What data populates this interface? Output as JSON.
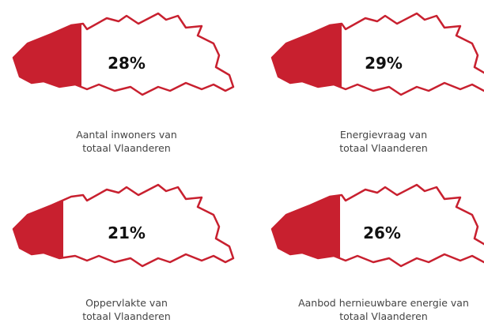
{
  "panels": [
    {
      "value": "28%",
      "caption": [
        "Aantal inwoners van",
        "totaal Vlaanderen"
      ]
    },
    {
      "value": "29%",
      "caption": [
        "Energievraag van",
        "totaal Vlaanderen"
      ]
    },
    {
      "value": "21%",
      "caption": [
        "Oppervlakte van",
        "totaal Vlaanderen"
      ]
    },
    {
      "value": "26%",
      "caption": [
        "Aanbod hernieuwbare energie van",
        "totaal Vlaanderen"
      ]
    }
  ]
}
